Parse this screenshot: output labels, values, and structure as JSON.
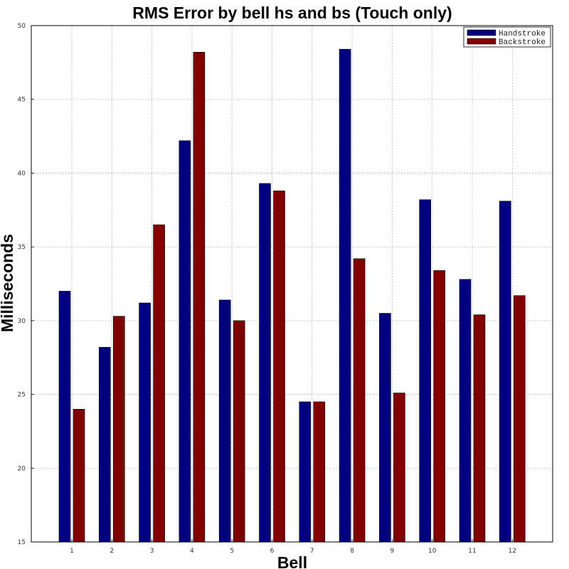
{
  "chart_data": {
    "type": "bar",
    "title": "RMS Error by bell hs and bs (Touch only)",
    "xlabel": "Bell",
    "ylabel": "Milliseconds",
    "categories": [
      "1",
      "2",
      "3",
      "4",
      "5",
      "6",
      "7",
      "8",
      "9",
      "10",
      "11",
      "12"
    ],
    "ylim": [
      15,
      50
    ],
    "yticks": [
      "15",
      "20",
      "25",
      "30",
      "35",
      "40",
      "45",
      "50"
    ],
    "grid": true,
    "legend_position": "top-right",
    "series": [
      {
        "name": "Handstroke",
        "color": "#000080",
        "values": [
          32.0,
          28.2,
          31.2,
          42.2,
          31.4,
          39.3,
          24.5,
          48.4,
          30.5,
          38.2,
          32.8,
          38.1
        ]
      },
      {
        "name": "Backstroke",
        "color": "#800000",
        "values": [
          24.0,
          30.3,
          36.5,
          48.2,
          30.0,
          38.8,
          24.5,
          34.2,
          25.1,
          33.4,
          30.4,
          31.7
        ]
      }
    ]
  }
}
